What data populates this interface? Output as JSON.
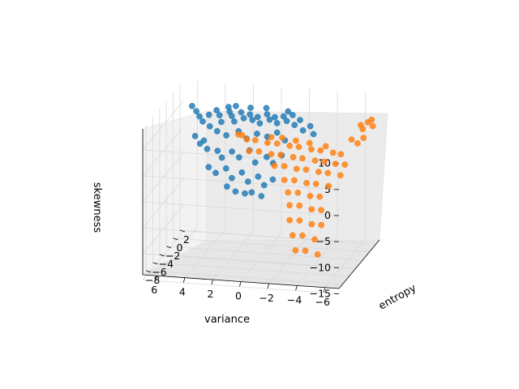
{
  "chart_data": {
    "type": "scatter",
    "projection": "3d",
    "title": "",
    "axes": {
      "x": {
        "label": "variance",
        "range": [
          -7,
          7
        ],
        "ticks": [
          6,
          4,
          2,
          0,
          -2,
          -4,
          -6
        ],
        "tick_labels": [
          "6",
          "4",
          "2",
          "0",
          "−2",
          "−4",
          "−6"
        ]
      },
      "y": {
        "label": "entropy",
        "range": [
          -9,
          3
        ],
        "ticks": [
          -8,
          -6,
          -4,
          -2,
          0,
          2
        ],
        "tick_labels": [
          "−8",
          "−6",
          "−4",
          "−2",
          "0",
          "2"
        ]
      },
      "z": {
        "label": "skewness",
        "range": [
          -14,
          14
        ],
        "ticks": [
          10,
          5,
          0,
          -5,
          -10,
          -15
        ],
        "tick_labels": [
          "10",
          "5",
          "0",
          "−5",
          "−10",
          "−15"
        ]
      }
    },
    "grid": true,
    "legend": false,
    "colors": {
      "series_1": "#1f77b4",
      "series_2": "#ff7f0e",
      "pane": "#f2f2f2",
      "grid": "#d9d9d9"
    },
    "series": [
      {
        "color": "#1f77b4",
        "points": [
          [
            5.6,
            -0.2,
            11.8
          ],
          [
            5.2,
            -0.6,
            11.2
          ],
          [
            4.9,
            -0.9,
            10.5
          ],
          [
            4.6,
            -1.2,
            9.8
          ],
          [
            4.2,
            -1.0,
            11.0
          ],
          [
            3.8,
            -0.4,
            11.5
          ],
          [
            3.5,
            -0.8,
            10.9
          ],
          [
            3.2,
            -1.5,
            10.2
          ],
          [
            2.9,
            -0.3,
            11.3
          ],
          [
            2.6,
            -0.9,
            11.0
          ],
          [
            2.3,
            -1.4,
            10.4
          ],
          [
            2.0,
            -0.6,
            11.6
          ],
          [
            1.7,
            -1.1,
            10.9
          ],
          [
            1.4,
            -0.5,
            11.2
          ],
          [
            1.1,
            -1.0,
            10.6
          ],
          [
            0.8,
            -0.7,
            11.0
          ],
          [
            0.5,
            -1.3,
            10.3
          ],
          [
            0.2,
            -0.4,
            11.4
          ],
          [
            -0.1,
            -0.9,
            10.8
          ],
          [
            -0.4,
            -0.6,
            11.1
          ],
          [
            -0.7,
            -1.2,
            10.5
          ],
          [
            -1.0,
            -0.5,
            11.3
          ],
          [
            -1.3,
            -0.8,
            10.7
          ],
          [
            -1.6,
            -0.3,
            11.5
          ],
          [
            -1.9,
            -1.0,
            10.2
          ],
          [
            -2.2,
            -0.6,
            10.9
          ],
          [
            4.0,
            -1.6,
            9.3
          ],
          [
            3.4,
            -1.9,
            8.7
          ],
          [
            2.7,
            -2.1,
            8.2
          ],
          [
            1.9,
            -1.8,
            8.9
          ],
          [
            1.2,
            -2.3,
            8.0
          ],
          [
            0.6,
            -1.7,
            8.6
          ],
          [
            -0.2,
            -2.0,
            8.4
          ],
          [
            -0.8,
            -1.6,
            9.0
          ],
          [
            -1.5,
            -2.2,
            8.1
          ],
          [
            4.5,
            -2.4,
            6.5
          ],
          [
            3.9,
            -2.8,
            5.9
          ],
          [
            3.3,
            -2.2,
            5.2
          ],
          [
            2.8,
            -3.0,
            4.6
          ],
          [
            2.2,
            -2.5,
            5.5
          ],
          [
            1.6,
            -2.9,
            4.8
          ],
          [
            1.0,
            -2.3,
            5.8
          ],
          [
            0.4,
            -3.1,
            4.2
          ],
          [
            -0.3,
            -2.6,
            5.0
          ],
          [
            -0.9,
            -3.2,
            4.4
          ],
          [
            -1.4,
            -2.7,
            5.6
          ],
          [
            3.6,
            -3.6,
            3.1
          ],
          [
            3.0,
            -4.0,
            2.4
          ],
          [
            2.4,
            -3.4,
            2.9
          ],
          [
            1.8,
            -4.2,
            1.8
          ],
          [
            1.2,
            -3.7,
            2.6
          ],
          [
            0.6,
            -4.4,
            1.5
          ],
          [
            0.0,
            -3.9,
            2.2
          ],
          [
            -0.6,
            -4.6,
            1.2
          ],
          [
            -1.1,
            -4.1,
            2.0
          ],
          [
            2.0,
            -4.8,
            0.6
          ],
          [
            1.3,
            -5.2,
            0.1
          ],
          [
            0.7,
            -4.9,
            -0.4
          ],
          [
            0.1,
            -5.4,
            0.3
          ],
          [
            -0.5,
            -5.0,
            -0.6
          ],
          [
            5.0,
            -1.8,
            7.4
          ],
          [
            4.3,
            -2.1,
            6.9
          ],
          [
            -2.6,
            -1.4,
            9.6
          ],
          [
            -3.0,
            -0.9,
            10.1
          ],
          [
            -3.4,
            -1.6,
            9.2
          ],
          [
            2.5,
            -0.1,
            12.3
          ],
          [
            1.5,
            0.1,
            12.0
          ],
          [
            0.3,
            -0.2,
            12.4
          ],
          [
            -1.2,
            0.0,
            11.9
          ],
          [
            3.0,
            -0.2,
            12.1
          ]
        ]
      },
      {
        "color": "#ff7f0e",
        "points": [
          [
            1.5,
            -1.0,
            6.8
          ],
          [
            0.8,
            -1.4,
            7.1
          ],
          [
            0.0,
            -1.1,
            6.5
          ],
          [
            -0.8,
            -1.6,
            6.9
          ],
          [
            -1.6,
            -1.2,
            6.3
          ],
          [
            -2.4,
            -1.8,
            6.7
          ],
          [
            -3.2,
            -1.4,
            6.1
          ],
          [
            -4.0,
            -2.0,
            6.5
          ],
          [
            -4.8,
            -1.6,
            5.9
          ],
          [
            -5.5,
            -2.2,
            6.2
          ],
          [
            1.1,
            -2.0,
            5.4
          ],
          [
            0.3,
            -2.4,
            5.8
          ],
          [
            -0.5,
            -2.1,
            5.2
          ],
          [
            -1.3,
            -2.6,
            5.6
          ],
          [
            -2.1,
            -2.2,
            5.0
          ],
          [
            -2.9,
            -2.8,
            5.4
          ],
          [
            -3.7,
            -2.4,
            4.8
          ],
          [
            -4.5,
            -3.0,
            5.2
          ],
          [
            -5.2,
            -2.6,
            4.6
          ],
          [
            -6.0,
            -3.1,
            5.0
          ],
          [
            -1.0,
            -3.2,
            3.9
          ],
          [
            -1.8,
            -3.6,
            4.3
          ],
          [
            -2.6,
            -3.3,
            3.7
          ],
          [
            -3.4,
            -3.8,
            4.1
          ],
          [
            -4.2,
            -3.4,
            3.5
          ],
          [
            -5.0,
            -4.0,
            3.9
          ],
          [
            -5.8,
            -3.6,
            3.3
          ],
          [
            -2.0,
            -4.4,
            2.3
          ],
          [
            -2.8,
            -4.8,
            2.7
          ],
          [
            -3.6,
            -4.5,
            2.1
          ],
          [
            -4.4,
            -5.0,
            2.5
          ],
          [
            -5.2,
            -4.6,
            1.9
          ],
          [
            -2.5,
            -5.4,
            0.8
          ],
          [
            -3.3,
            -5.8,
            1.2
          ],
          [
            -4.1,
            -5.5,
            0.5
          ],
          [
            -4.9,
            -6.0,
            0.9
          ],
          [
            -2.8,
            -6.2,
            -1.0
          ],
          [
            -3.6,
            -6.6,
            -0.6
          ],
          [
            -4.4,
            -6.3,
            -1.4
          ],
          [
            -5.2,
            -6.8,
            -1.0
          ],
          [
            -3.0,
            -7.0,
            -3.2
          ],
          [
            -3.8,
            -7.4,
            -2.8
          ],
          [
            -4.6,
            -7.1,
            -3.6
          ],
          [
            -5.4,
            -7.6,
            -3.2
          ],
          [
            -3.4,
            -7.8,
            -5.4
          ],
          [
            -4.2,
            -8.2,
            -5.0
          ],
          [
            -5.0,
            -7.9,
            -5.8
          ],
          [
            -3.8,
            -8.6,
            -7.6
          ],
          [
            -4.6,
            -9.0,
            -7.2
          ],
          [
            -5.4,
            -8.7,
            -8.0
          ],
          [
            -6.2,
            0.8,
            9.6
          ],
          [
            -6.6,
            1.2,
            9.9
          ],
          [
            -7.0,
            1.0,
            9.4
          ],
          [
            -6.4,
            0.5,
            9.1
          ],
          [
            -6.8,
            1.5,
            10.2
          ],
          [
            -5.8,
            -0.3,
            7.6
          ],
          [
            -6.3,
            -0.6,
            7.2
          ],
          [
            -6.6,
            -0.1,
            7.9
          ],
          [
            2.2,
            -0.6,
            7.3
          ],
          [
            1.8,
            -1.2,
            7.7
          ],
          [
            -0.2,
            -0.8,
            7.4
          ],
          [
            -1.0,
            -0.9,
            7.5
          ],
          [
            -2.0,
            -1.0,
            7.2
          ],
          [
            -3.0,
            -1.1,
            7.0
          ],
          [
            -4.2,
            -1.3,
            6.8
          ]
        ]
      }
    ]
  }
}
